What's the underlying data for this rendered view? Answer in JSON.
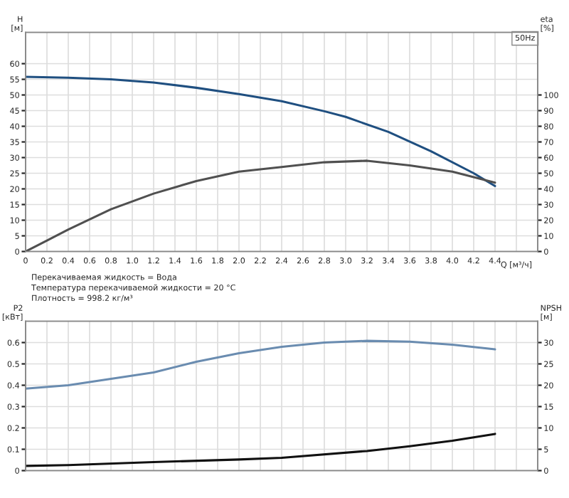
{
  "chart_data": [
    {
      "type": "line",
      "title": "50Hz",
      "xlabel": "Q [м³/ч]",
      "ylabel": "H\n[м]",
      "y2label": "eta\n[%]",
      "annotations": [
        "Перекачиваемая жидкость = Вода",
        "Температура перекачиваемой жидкости = 20 °C",
        "Плотность = 998.2 кг/м³"
      ],
      "xlim": [
        0,
        4.8
      ],
      "xticks": [
        0,
        0.2,
        0.4,
        0.6,
        0.8,
        {
          "value": 1,
          "label": "1.0"
        },
        1.2,
        1.4,
        1.6,
        1.8,
        {
          "value": 2,
          "label": "2.0"
        },
        2.2,
        2.4,
        2.6,
        2.8,
        {
          "value": 3,
          "label": "3.0"
        },
        3.2,
        3.4,
        3.6,
        3.8,
        {
          "value": 4,
          "label": "4.0"
        },
        4.2,
        4.4,
        {
          "value": 4.6,
          "label": null
        }
      ],
      "ylim": [
        0,
        70
      ],
      "yticks": [
        0,
        5,
        10,
        15,
        20,
        25,
        30,
        35,
        40,
        45,
        50,
        55,
        60
      ],
      "y2lim": [
        0,
        140
      ],
      "y2ticks": [
        0,
        10,
        20,
        30,
        40,
        50,
        60,
        70,
        80,
        90,
        100
      ],
      "grid": true,
      "series": [
        {
          "color": "#1f4f80",
          "x": [
            0,
            0.4,
            0.8,
            1.2,
            1.6,
            2.0,
            2.4,
            2.8,
            3.0,
            3.4,
            3.8,
            4.2,
            4.4
          ],
          "values": [
            55.8,
            55.5,
            55,
            54,
            52.3,
            50.3,
            48,
            44.8,
            43,
            38.2,
            32,
            25,
            20.9
          ]
        },
        {
          "color": "#505050",
          "axis": "y2",
          "x": [
            0,
            0.2,
            0.4,
            0.8,
            1.2,
            1.6,
            2.0,
            2.4,
            2.8,
            3.2,
            3.6,
            4.0,
            4.4
          ],
          "values": [
            0,
            7,
            14,
            27,
            37,
            45,
            51,
            54,
            57,
            58,
            55,
            51,
            44
          ]
        }
      ]
    },
    {
      "type": "line",
      "ylabel": "P2\n[кВт]",
      "y2label": "NPSH\n[м]",
      "tick_labels": "y",
      "xlim": [
        0,
        4.8
      ],
      "xticks": [
        {
          "value": 0,
          "label": null
        },
        {
          "value": 0.2,
          "label": null
        },
        {
          "value": 0.4,
          "label": null
        },
        {
          "value": 0.6,
          "label": null
        },
        {
          "value": 0.8,
          "label": null
        },
        {
          "value": 1.0,
          "label": null
        },
        {
          "value": 1.2,
          "label": null
        },
        {
          "value": 1.4,
          "label": null
        },
        {
          "value": 1.6,
          "label": null
        },
        {
          "value": 1.8,
          "label": null
        },
        {
          "value": 2.0,
          "label": null
        },
        {
          "value": 2.2,
          "label": null
        },
        {
          "value": 2.4,
          "label": null
        },
        {
          "value": 2.6,
          "label": null
        },
        {
          "value": 2.8,
          "label": null
        },
        {
          "value": 3.0,
          "label": null
        },
        {
          "value": 3.2,
          "label": null
        },
        {
          "value": 3.4,
          "label": null
        },
        {
          "value": 3.6,
          "label": null
        },
        {
          "value": 3.8,
          "label": null
        },
        {
          "value": 4.0,
          "label": null
        },
        {
          "value": 4.2,
          "label": null
        },
        {
          "value": 4.4,
          "label": null
        },
        {
          "value": 4.6,
          "label": null
        }
      ],
      "ylim": [
        0,
        0.7
      ],
      "yticks": [
        0,
        0.1,
        0.2,
        0.3,
        0.4,
        0.5,
        0.6
      ],
      "y2lim": [
        0,
        35
      ],
      "y2ticks": [
        0,
        5,
        10,
        15,
        20,
        25,
        30
      ],
      "grid": true,
      "series": [
        {
          "color": "#6a8cb0",
          "x": [
            0,
            0.4,
            0.8,
            1.2,
            1.6,
            2.0,
            2.4,
            2.8,
            3.2,
            3.6,
            4.0,
            4.4
          ],
          "values": [
            0.384,
            0.4,
            0.43,
            0.46,
            0.51,
            0.55,
            0.58,
            0.6,
            0.608,
            0.604,
            0.59,
            0.568
          ]
        },
        {
          "color": "#111111",
          "axis": "y2",
          "x": [
            0,
            0.4,
            1.2,
            2.0,
            2.4,
            3.2,
            3.6,
            4.0,
            4.4
          ],
          "values": [
            1.1,
            1.3,
            2.0,
            2.6,
            3.0,
            4.6,
            5.7,
            7.0,
            8.6
          ]
        }
      ]
    }
  ]
}
